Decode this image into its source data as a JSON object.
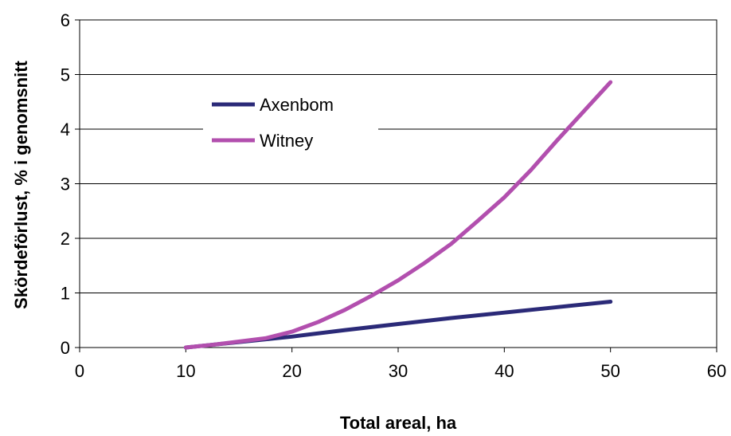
{
  "chart_data": {
    "type": "line",
    "title": "",
    "xlabel": "Total areal, ha",
    "ylabel": "Skördeförlust, % i genomsnitt",
    "xlim": [
      0,
      60
    ],
    "ylim": [
      0,
      6
    ],
    "xticks": [
      0,
      10,
      20,
      30,
      40,
      50,
      60
    ],
    "yticks": [
      0,
      1,
      2,
      3,
      4,
      5,
      6
    ],
    "grid": "horizontal",
    "legend_position": "upper-left",
    "series": [
      {
        "name": "Axenbom",
        "color": "#2b2a78",
        "x": [
          10,
          15,
          20,
          25,
          30,
          35,
          40,
          45,
          50
        ],
        "y": [
          0,
          0.1,
          0.2,
          0.32,
          0.43,
          0.54,
          0.64,
          0.74,
          0.84
        ]
      },
      {
        "name": "Witney",
        "color": "#b24fae",
        "x": [
          10,
          12.5,
          15,
          17.5,
          20,
          22.5,
          25,
          27.5,
          30,
          32.5,
          35,
          37.5,
          40,
          42.5,
          45,
          47.5,
          50
        ],
        "y": [
          0,
          0.05,
          0.11,
          0.17,
          0.29,
          0.47,
          0.69,
          0.95,
          1.23,
          1.55,
          1.9,
          2.32,
          2.75,
          3.25,
          3.8,
          4.33,
          4.86
        ]
      }
    ]
  }
}
